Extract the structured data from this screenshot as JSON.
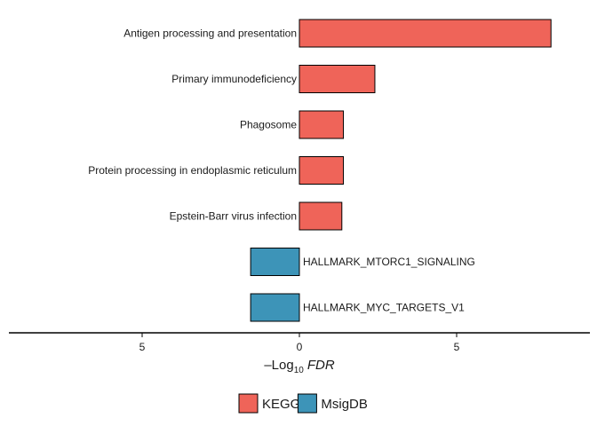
{
  "chart_data": {
    "type": "bar",
    "orientation": "horizontal",
    "categories": [
      "Antigen processing and presentation",
      "Primary immunodeficiency",
      "Phagosome",
      "Protein processing in endoplasmic reticulum",
      "Epstein-Barr virus infection",
      "HALLMARK_MTORC1_SIGNALING",
      "HALLMARK_MYC_TARGETS_V1"
    ],
    "values": [
      8.0,
      2.4,
      1.4,
      1.4,
      1.35,
      -1.55,
      -1.55
    ],
    "groups": [
      "KEGG",
      "KEGG",
      "KEGG",
      "KEGG",
      "KEGG",
      "MsigDB",
      "MsigDB"
    ],
    "xlim": [
      -9.3,
      9.3
    ],
    "xticks": [
      -5,
      0,
      5
    ],
    "xtick_labels": [
      "5",
      "0",
      "5"
    ],
    "xlabel": {
      "prefix": "–Log",
      "subscript": "10",
      "suffix": "FDR"
    },
    "grid": false,
    "legend": {
      "position": "bottom",
      "items": [
        {
          "label": "KEGG",
          "color": "#EF6459"
        },
        {
          "label": "MsigDB",
          "color": "#3D94B8"
        }
      ]
    }
  }
}
